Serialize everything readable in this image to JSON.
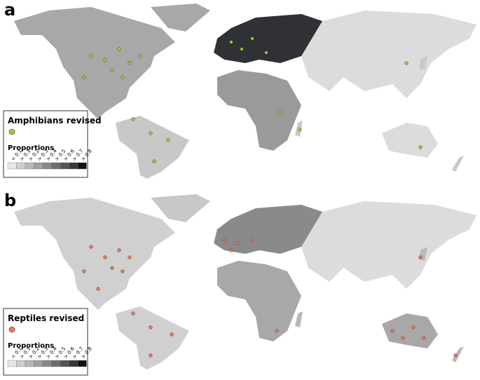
{
  "panels": [
    {
      "letter": "a",
      "legend": {
        "title": "Amphibians revised",
        "subtitle": "Proportions",
        "scale": [
          "< 0.1",
          "> 0.1",
          "> 0.2",
          "> 0.3",
          "> 0.4",
          "> 0.5",
          "> 0.6",
          "> 0.7",
          "> 0.8"
        ]
      }
    },
    {
      "letter": "b",
      "legend": {
        "title": "Reptiles revised",
        "subtitle": "Proportions",
        "scale": [
          "< 0.1",
          "> 0.1",
          "> 0.2",
          "> 0.3",
          "> 0.4",
          "> 0.5",
          "> 0.6",
          "> 0.7",
          "> 0.8"
        ]
      }
    }
  ]
}
